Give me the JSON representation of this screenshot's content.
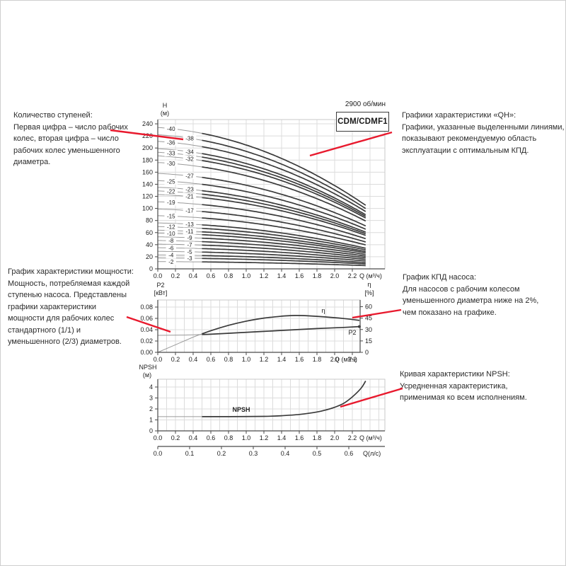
{
  "frame": {
    "rpm_label": "2900 об/мин",
    "model_label": "CDM/CDMF1"
  },
  "colors": {
    "accent_red": "#e8192d",
    "curve_dark": "#3a3a3a",
    "curve_light": "#9a9a9a",
    "grid": "#dcdcdc",
    "border": "#c9c9c9",
    "axis": "#4a4a4a",
    "text": "#222222"
  },
  "annotations": {
    "stages": {
      "lines": [
        "Количество ступеней:",
        "Первая цифра – число рабочих",
        "колес, вторая цифра – число",
        "рабочих колес уменьшенного",
        "диаметра."
      ]
    },
    "qh": {
      "lines": [
        "Графики характеристики «QH»:",
        "Графики, указанные выделенными линиями,",
        "показывают рекомендуемую область",
        "эксплуатации с оптимальным КПД."
      ]
    },
    "power": {
      "lines": [
        "График характеристики мощности:",
        "Мощность, потребляемая каждой",
        "ступенью насоса. Представлены",
        "графики характеристики",
        "мощности для рабочих колес",
        "стандартного (1/1) и",
        "уменьшенного (2/3) диаметров."
      ]
    },
    "efficiency": {
      "lines": [
        "График КПД насоса:",
        "Для насосов с рабочим колесом",
        "уменьшенного диаметра ниже на 2%,",
        "чем показано на графике."
      ]
    },
    "npsh": {
      "lines": [
        "Кривая характеристики NPSH:",
        "Усредненная характеристика,",
        "применимая ко всем исполнениям."
      ]
    }
  },
  "chart_data": [
    {
      "id": "qh-chart",
      "type": "line",
      "title": "CDM/CDMF1",
      "subtitle": "2900 об/мин",
      "xlabel": "Q (м³/ч)",
      "ylabel_lines": [
        "H",
        "(м)"
      ],
      "xlim": [
        0,
        2.57
      ],
      "ylim": [
        0,
        247
      ],
      "x_ticks": [
        "0.0",
        "0.2",
        "0.4",
        "0.6",
        "0.8",
        "1.0",
        "1.2",
        "1.4",
        "1.6",
        "1.8",
        "2.0",
        "2.2"
      ],
      "y_ticks": [
        0,
        20,
        40,
        60,
        80,
        100,
        120,
        140,
        160,
        180,
        200,
        220,
        240
      ],
      "grid": true,
      "q_max": 2.35,
      "bold_range": [
        0.5,
        2.35
      ],
      "curve_model": "H(Q) = H0·(1 − 0.10·(Q/2.35) − 0.45·(Q/2.35)²), Q in м³/ч from 0 to 2.35",
      "curves": [
        {
          "label": "-40",
          "h0": 234,
          "col": 1
        },
        {
          "label": "-38",
          "h0": 222,
          "col": 2
        },
        {
          "label": "-36",
          "h0": 211,
          "col": 1
        },
        {
          "label": "-34",
          "h0": 199,
          "col": 2
        },
        {
          "label": "-33",
          "h0": 193,
          "col": 1
        },
        {
          "label": "-32",
          "h0": 187,
          "col": 2
        },
        {
          "label": "-30",
          "h0": 176,
          "col": 1
        },
        {
          "label": "-27",
          "h0": 158,
          "col": 2
        },
        {
          "label": "-25",
          "h0": 146,
          "col": 1
        },
        {
          "label": "-23",
          "h0": 135,
          "col": 2
        },
        {
          "label": "-22",
          "h0": 129,
          "col": 1
        },
        {
          "label": "-21",
          "h0": 123,
          "col": 2
        },
        {
          "label": "-19",
          "h0": 111,
          "col": 1
        },
        {
          "label": "-17",
          "h0": 99,
          "col": 2
        },
        {
          "label": "-15",
          "h0": 88,
          "col": 1
        },
        {
          "label": "-13",
          "h0": 76,
          "col": 2
        },
        {
          "label": "-12",
          "h0": 70,
          "col": 1
        },
        {
          "label": "-11",
          "h0": 64,
          "col": 2
        },
        {
          "label": "-10",
          "h0": 59,
          "col": 1
        },
        {
          "label": "-9",
          "h0": 53,
          "col": 2
        },
        {
          "label": "-8",
          "h0": 47,
          "col": 1
        },
        {
          "label": "-7",
          "h0": 41,
          "col": 2
        },
        {
          "label": "-6",
          "h0": 35,
          "col": 1
        },
        {
          "label": "-5",
          "h0": 29,
          "col": 2
        },
        {
          "label": "-4",
          "h0": 23,
          "col": 1
        },
        {
          "label": "-3",
          "h0": 18,
          "col": 2
        },
        {
          "label": "-2",
          "h0": 12,
          "col": 1
        }
      ],
      "label_col_q": [
        0.15,
        0.36
      ]
    },
    {
      "id": "power-efficiency-chart",
      "type": "line",
      "xlabel": "Q (м³/ч)",
      "ylabel_left_lines": [
        "P2",
        "[кВт]"
      ],
      "ylabel_right_lines": [
        "η",
        "[%]"
      ],
      "x_ticks": [
        "0.0",
        "0.2",
        "0.4",
        "0.6",
        "0.8",
        "1.0",
        "1.2",
        "1.4",
        "1.6",
        "1.8",
        "2.0",
        "2.2"
      ],
      "y_ticks_left": [
        "0.00",
        "0.02",
        "0.04",
        "0.06",
        "0.08"
      ],
      "y_ticks_right": [
        "0",
        "15",
        "30",
        "45",
        "60"
      ],
      "ylim_left": [
        0,
        0.0925
      ],
      "ylim_right": [
        0,
        69
      ],
      "grid": true,
      "bold_range": [
        0.5,
        2.28
      ],
      "series": [
        {
          "name": "P2",
          "axis": "left",
          "end_dot": true,
          "x": [
            0,
            0.3,
            0.6,
            0.9,
            1.2,
            1.5,
            1.8,
            2.1,
            2.28
          ],
          "y": [
            0.03,
            0.0305,
            0.032,
            0.0345,
            0.037,
            0.0395,
            0.042,
            0.044,
            0.0455
          ]
        },
        {
          "name": "η",
          "axis": "right",
          "end_dot": false,
          "x": [
            0,
            0.2,
            0.4,
            0.6,
            0.8,
            1.0,
            1.2,
            1.4,
            1.55,
            1.7,
            1.9,
            2.1,
            2.28
          ],
          "y": [
            0,
            10,
            20,
            28.5,
            35.5,
            41,
            45,
            47.5,
            48.5,
            48,
            46.5,
            44.5,
            42
          ]
        }
      ]
    },
    {
      "id": "npsh-chart",
      "type": "line",
      "xlabel": "Q (м³/ч)",
      "x2label": "Q(л/с)",
      "ylabel_lines": [
        "NPSH",
        "(м)"
      ],
      "x_ticks": [
        "0.0",
        "0.2",
        "0.4",
        "0.6",
        "0.8",
        "1.0",
        "1.2",
        "1.4",
        "1.6",
        "1.8",
        "2.0",
        "2.2"
      ],
      "x2_ticks": [
        "0.0",
        "0.1",
        "0.2",
        "0.3",
        "0.4",
        "0.5",
        "0.6"
      ],
      "y_ticks": [
        0,
        1,
        2,
        3,
        4
      ],
      "ylim": [
        0,
        4.7
      ],
      "grid": true,
      "bold_range": [
        0.5,
        2.35
      ],
      "series": [
        {
          "name": "NPSH",
          "x": [
            0,
            0.4,
            0.8,
            1.2,
            1.4,
            1.6,
            1.8,
            1.9,
            2.0,
            2.1,
            2.2,
            2.3,
            2.35
          ],
          "y": [
            1.3,
            1.3,
            1.3,
            1.32,
            1.38,
            1.5,
            1.72,
            1.9,
            2.15,
            2.5,
            3.1,
            3.9,
            4.55
          ]
        }
      ]
    }
  ]
}
